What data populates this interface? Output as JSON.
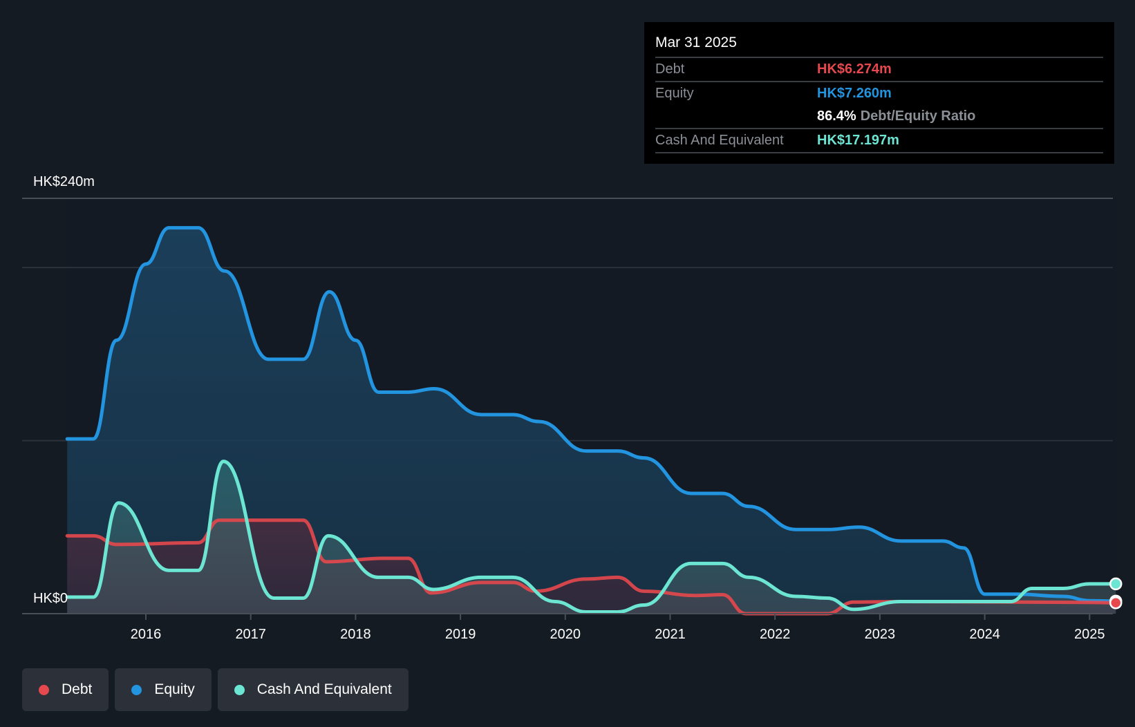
{
  "chart_data": {
    "type": "area",
    "title": "",
    "xlabel": "",
    "ylabel": "",
    "y_unit": "HK$ millions",
    "ylim": [
      0,
      240
    ],
    "y_tick_labels": [
      {
        "value": 240,
        "label": "HK$240m"
      },
      {
        "value": 0,
        "label": "HK$0"
      }
    ],
    "gridlines": [
      0,
      100,
      200,
      240
    ],
    "xlim": [
      2015.25,
      2025.25
    ],
    "x_ticks": [
      2016,
      2017,
      2018,
      2019,
      2020,
      2021,
      2022,
      2023,
      2024,
      2025
    ],
    "x_tick_labels": [
      "2016",
      "2017",
      "2018",
      "2019",
      "2020",
      "2021",
      "2022",
      "2023",
      "2024",
      "2025"
    ],
    "legend_position": "bottom-left",
    "series": [
      {
        "name": "Debt",
        "color": "#e5484d",
        "x": [
          2015.25,
          2015.5,
          2015.72,
          2016.5,
          2016.7,
          2017.5,
          2017.72,
          2018.28,
          2018.5,
          2018.72,
          2019.2,
          2019.5,
          2019.72,
          2020.2,
          2020.5,
          2020.75,
          2021.25,
          2021.5,
          2021.72,
          2022.5,
          2022.75,
          2023.2,
          2024.0,
          2025.0,
          2025.25
        ],
        "values": [
          45,
          45,
          40,
          41,
          54,
          54,
          30,
          32,
          32,
          12,
          18,
          18,
          13,
          20,
          21,
          13,
          10.5,
          11,
          0,
          0,
          6.7,
          7,
          6.8,
          6.5,
          6.274
        ]
      },
      {
        "name": "Equity",
        "color": "#2394df",
        "x": [
          2015.25,
          2015.5,
          2015.72,
          2016.0,
          2016.22,
          2016.5,
          2016.75,
          2017.17,
          2017.5,
          2017.75,
          2018.0,
          2018.22,
          2018.5,
          2018.75,
          2019.2,
          2019.5,
          2019.75,
          2020.2,
          2020.5,
          2020.75,
          2021.2,
          2021.5,
          2021.75,
          2022.2,
          2022.5,
          2022.8,
          2023.2,
          2023.6,
          2023.8,
          2024.0,
          2024.3,
          2024.75,
          2025.0,
          2025.25
        ],
        "values": [
          101,
          101,
          158,
          202,
          223,
          223,
          198,
          147,
          147,
          186,
          158,
          128,
          128,
          130,
          115,
          115,
          111,
          94,
          94,
          90,
          69.5,
          69.5,
          62,
          48.6,
          48.6,
          50,
          42,
          42,
          38,
          11.3,
          11.3,
          10,
          7.5,
          7.26
        ]
      },
      {
        "name": "Cash And Equivalent",
        "color": "#6ce5d3",
        "x": [
          2015.25,
          2015.5,
          2015.74,
          2016.22,
          2016.5,
          2016.74,
          2017.22,
          2017.5,
          2017.74,
          2018.22,
          2018.5,
          2018.74,
          2019.2,
          2019.5,
          2019.9,
          2020.2,
          2020.5,
          2020.75,
          2021.2,
          2021.5,
          2021.75,
          2022.2,
          2022.5,
          2022.75,
          2023.2,
          2024.25,
          2024.45,
          2024.75,
          2025.0,
          2025.25
        ],
        "values": [
          9.6,
          9.6,
          64,
          25,
          25,
          88,
          9,
          9,
          45,
          21,
          21,
          14,
          21,
          21,
          7,
          1,
          1,
          5,
          29,
          29,
          21,
          10,
          9,
          2.5,
          7,
          7,
          14.6,
          14.6,
          17.2,
          17.197
        ]
      }
    ]
  },
  "tooltip": {
    "date": "Mar 31 2025",
    "rows": [
      {
        "label": "Debt",
        "value": "HK$6.274m",
        "color": "#e5484d"
      },
      {
        "label": "Equity",
        "value": "HK$7.260m",
        "color": "#2394df"
      },
      {
        "label": "Cash And Equivalent",
        "value": "HK$17.197m",
        "color": "#6ce5d3"
      }
    ],
    "ratio_value": "86.4%",
    "ratio_label": "Debt/Equity Ratio"
  },
  "legend": [
    {
      "label": "Debt",
      "color": "#e5484d"
    },
    {
      "label": "Equity",
      "color": "#2394df"
    },
    {
      "label": "Cash And Equivalent",
      "color": "#6ce5d3"
    }
  ]
}
